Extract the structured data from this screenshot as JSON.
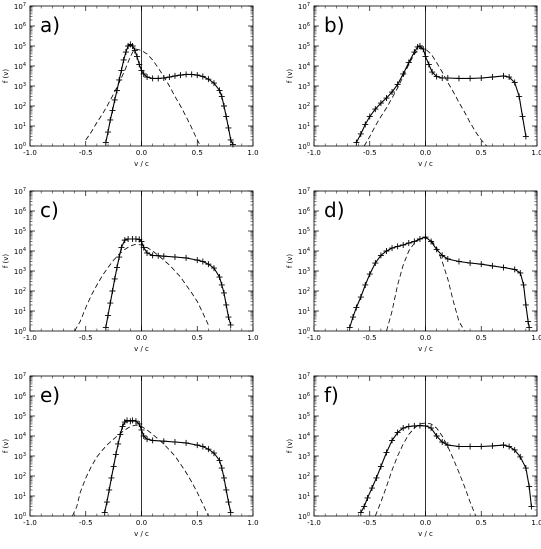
{
  "figure": {
    "panel_labels": [
      "a)",
      "b)",
      "c)",
      "d)",
      "e)",
      "f)"
    ],
    "xlabel": "v / c",
    "ylabel": "f (v)",
    "x_tick_labels": [
      "-1.0",
      "-0.5",
      "0.0",
      "0.5",
      "1.0"
    ],
    "y_tick_labels": [
      {
        "base": "10",
        "exp": "0"
      },
      {
        "base": "10",
        "exp": "1"
      },
      {
        "base": "10",
        "exp": "2"
      },
      {
        "base": "10",
        "exp": "3"
      },
      {
        "base": "10",
        "exp": "4"
      },
      {
        "base": "10",
        "exp": "5"
      },
      {
        "base": "10",
        "exp": "6"
      },
      {
        "base": "10",
        "exp": "7"
      }
    ]
  },
  "chart_data": [
    {
      "type": "line",
      "panel": "a)",
      "xlabel": "v / c",
      "ylabel": "f (v)",
      "xlim": [
        -1.0,
        1.0
      ],
      "ylim": [
        1,
        10000000
      ],
      "yscale": "log",
      "vertical_line_x": 0.0,
      "series": [
        {
          "style": "plus-markers",
          "x": [
            -0.32,
            -0.3,
            -0.28,
            -0.26,
            -0.24,
            -0.22,
            -0.2,
            -0.18,
            -0.16,
            -0.14,
            -0.12,
            -0.1,
            -0.08,
            -0.06,
            -0.04,
            -0.02,
            0.0,
            0.02,
            0.05,
            0.1,
            0.15,
            0.2,
            0.25,
            0.3,
            0.35,
            0.4,
            0.45,
            0.5,
            0.55,
            0.6,
            0.65,
            0.7,
            0.72,
            0.74,
            0.76,
            0.78,
            0.8,
            0.82
          ],
          "y": [
            1.5,
            5,
            20,
            60,
            200,
            600,
            2000,
            6000,
            20000,
            50000,
            100000,
            120000,
            100000,
            60000,
            30000,
            12000,
            6000,
            4000,
            2800,
            2400,
            2400,
            2500,
            2800,
            3200,
            3500,
            3800,
            3800,
            3500,
            3000,
            2200,
            1400,
            600,
            300,
            100,
            30,
            8,
            2,
            1.2
          ]
        },
        {
          "style": "dashed",
          "x": [
            -0.5,
            -0.45,
            -0.4,
            -0.35,
            -0.3,
            -0.25,
            -0.2,
            -0.15,
            -0.1,
            -0.07,
            -0.05,
            0.0,
            0.05,
            0.1,
            0.15,
            0.2,
            0.25,
            0.3,
            0.35,
            0.4,
            0.45,
            0.5,
            0.53
          ],
          "y": [
            2,
            5,
            15,
            40,
            120,
            400,
            1500,
            6000,
            30000,
            60000,
            70000,
            60000,
            40000,
            20000,
            8000,
            3000,
            1000,
            300,
            100,
            30,
            8,
            2,
            1
          ]
        }
      ]
    },
    {
      "type": "line",
      "panel": "b)",
      "xlabel": "v / c",
      "ylabel": "f (v)",
      "xlim": [
        -1.0,
        1.0
      ],
      "ylim": [
        1,
        10000000
      ],
      "yscale": "log",
      "vertical_line_x": 0.0,
      "series": [
        {
          "style": "plus-markers",
          "x": [
            -0.62,
            -0.58,
            -0.54,
            -0.5,
            -0.45,
            -0.4,
            -0.35,
            -0.3,
            -0.25,
            -0.2,
            -0.15,
            -0.1,
            -0.07,
            -0.05,
            -0.02,
            0.0,
            0.03,
            0.06,
            0.1,
            0.15,
            0.2,
            0.3,
            0.4,
            0.5,
            0.6,
            0.7,
            0.75,
            0.8,
            0.84,
            0.87,
            0.9
          ],
          "y": [
            1.5,
            4,
            12,
            30,
            70,
            140,
            250,
            500,
            1200,
            4000,
            15000,
            50000,
            90000,
            100000,
            70000,
            30000,
            12000,
            5000,
            3000,
            2500,
            2500,
            2400,
            2400,
            2500,
            2800,
            3200,
            2800,
            1500,
            300,
            30,
            3
          ]
        },
        {
          "style": "dashed",
          "x": [
            -0.55,
            -0.5,
            -0.45,
            -0.4,
            -0.35,
            -0.3,
            -0.25,
            -0.2,
            -0.15,
            -0.1,
            -0.05,
            0.0,
            0.05,
            0.1,
            0.15,
            0.2,
            0.25,
            0.3,
            0.35,
            0.4,
            0.45,
            0.5,
            0.55
          ],
          "y": [
            1,
            3,
            10,
            30,
            80,
            250,
            800,
            3000,
            12000,
            40000,
            80000,
            70000,
            40000,
            15000,
            5000,
            1500,
            500,
            150,
            50,
            15,
            5,
            2,
            1
          ]
        }
      ]
    },
    {
      "type": "line",
      "panel": "c)",
      "xlabel": "v / c",
      "ylabel": "f (v)",
      "xlim": [
        -1.0,
        1.0
      ],
      "ylim": [
        1,
        10000000
      ],
      "yscale": "log",
      "vertical_line_x": 0.0,
      "series": [
        {
          "style": "plus-markers",
          "x": [
            -0.32,
            -0.3,
            -0.28,
            -0.26,
            -0.24,
            -0.22,
            -0.2,
            -0.18,
            -0.15,
            -0.12,
            -0.08,
            -0.05,
            -0.02,
            0.0,
            0.02,
            0.05,
            0.1,
            0.15,
            0.2,
            0.3,
            0.4,
            0.5,
            0.55,
            0.6,
            0.65,
            0.7,
            0.72,
            0.74,
            0.76,
            0.78,
            0.8
          ],
          "y": [
            1.5,
            6,
            25,
            100,
            400,
            1500,
            5000,
            15000,
            35000,
            40000,
            40000,
            40000,
            38000,
            30000,
            15000,
            8000,
            6000,
            5800,
            5500,
            5000,
            4500,
            3500,
            3000,
            2200,
            1400,
            500,
            200,
            80,
            20,
            5,
            2
          ]
        },
        {
          "style": "dashed",
          "x": [
            -0.6,
            -0.55,
            -0.5,
            -0.45,
            -0.4,
            -0.35,
            -0.3,
            -0.25,
            -0.2,
            -0.15,
            -0.1,
            -0.05,
            0.0,
            0.05,
            0.1,
            0.15,
            0.2,
            0.25,
            0.3,
            0.35,
            0.4,
            0.45,
            0.5,
            0.55,
            0.6
          ],
          "y": [
            1,
            3,
            15,
            60,
            200,
            600,
            1500,
            3500,
            7000,
            12000,
            18000,
            22000,
            20000,
            15000,
            10000,
            6000,
            3500,
            2000,
            1000,
            500,
            200,
            80,
            30,
            8,
            2
          ]
        }
      ]
    },
    {
      "type": "line",
      "panel": "d)",
      "xlabel": "v / c",
      "ylabel": "f (v)",
      "xlim": [
        -1.0,
        1.0
      ],
      "ylim": [
        1,
        10000000
      ],
      "yscale": "log",
      "vertical_line_x": 0.0,
      "series": [
        {
          "style": "plus-markers",
          "x": [
            -0.68,
            -0.65,
            -0.62,
            -0.58,
            -0.54,
            -0.5,
            -0.45,
            -0.4,
            -0.35,
            -0.3,
            -0.25,
            -0.2,
            -0.15,
            -0.1,
            -0.05,
            0.0,
            0.05,
            0.1,
            0.15,
            0.2,
            0.3,
            0.4,
            0.5,
            0.6,
            0.7,
            0.8,
            0.85,
            0.88,
            0.9,
            0.92,
            0.93
          ],
          "y": [
            1.5,
            5,
            15,
            50,
            200,
            700,
            2500,
            6000,
            10000,
            14000,
            17000,
            20000,
            25000,
            30000,
            40000,
            50000,
            30000,
            12000,
            6000,
            4000,
            3000,
            2500,
            2200,
            1800,
            1500,
            1200,
            800,
            200,
            20,
            3,
            1.5
          ]
        },
        {
          "style": "dashed",
          "x": [
            -0.35,
            -0.3,
            -0.25,
            -0.2,
            -0.15,
            -0.1,
            -0.05,
            0.0,
            0.05,
            0.1,
            0.15,
            0.2,
            0.25,
            0.3,
            0.35
          ],
          "y": [
            1,
            10,
            200,
            2000,
            10000,
            25000,
            40000,
            45000,
            35000,
            15000,
            3000,
            400,
            30,
            3,
            1
          ]
        }
      ]
    },
    {
      "type": "line",
      "panel": "e)",
      "xlabel": "v / c",
      "ylabel": "f (v)",
      "xlim": [
        -1.0,
        1.0
      ],
      "ylim": [
        1,
        10000000
      ],
      "yscale": "log",
      "vertical_line_x": 0.0,
      "series": [
        {
          "style": "plus-markers",
          "x": [
            -0.33,
            -0.31,
            -0.29,
            -0.27,
            -0.25,
            -0.23,
            -0.21,
            -0.19,
            -0.17,
            -0.15,
            -0.13,
            -0.1,
            -0.08,
            -0.05,
            -0.02,
            0.0,
            0.02,
            0.05,
            0.1,
            0.2,
            0.3,
            0.4,
            0.5,
            0.55,
            0.6,
            0.65,
            0.7,
            0.72,
            0.74,
            0.76,
            0.78,
            0.8
          ],
          "y": [
            1.5,
            5,
            20,
            80,
            300,
            1200,
            4000,
            12000,
            30000,
            50000,
            60000,
            55000,
            60000,
            55000,
            40000,
            20000,
            10000,
            7000,
            6000,
            5500,
            5000,
            4500,
            3500,
            3000,
            2200,
            1400,
            600,
            250,
            80,
            20,
            5,
            1.5
          ]
        },
        {
          "style": "dashed",
          "x": [
            -0.62,
            -0.58,
            -0.55,
            -0.5,
            -0.45,
            -0.4,
            -0.35,
            -0.3,
            -0.25,
            -0.2,
            -0.15,
            -0.1,
            -0.05,
            0.0,
            0.05,
            0.1,
            0.15,
            0.2,
            0.25,
            0.3,
            0.35,
            0.4,
            0.45,
            0.5,
            0.55,
            0.6
          ],
          "y": [
            1,
            3,
            15,
            80,
            300,
            900,
            2000,
            4000,
            7000,
            12000,
            20000,
            30000,
            35000,
            30000,
            20000,
            12000,
            7000,
            4000,
            2000,
            1000,
            400,
            150,
            50,
            15,
            4,
            1
          ]
        }
      ]
    },
    {
      "type": "line",
      "panel": "f)",
      "xlabel": "v / c",
      "ylabel": "f (v)",
      "xlim": [
        -1.0,
        1.0
      ],
      "ylim": [
        1,
        10000000
      ],
      "yscale": "log",
      "vertical_line_x": 0.0,
      "series": [
        {
          "style": "plus-markers",
          "x": [
            -0.58,
            -0.55,
            -0.52,
            -0.48,
            -0.44,
            -0.4,
            -0.35,
            -0.3,
            -0.25,
            -0.2,
            -0.15,
            -0.1,
            -0.05,
            0.0,
            0.05,
            0.1,
            0.15,
            0.2,
            0.3,
            0.4,
            0.5,
            0.6,
            0.7,
            0.75,
            0.8,
            0.85,
            0.9,
            0.93,
            0.95
          ],
          "y": [
            1.5,
            3,
            8,
            25,
            80,
            300,
            1500,
            6000,
            15000,
            25000,
            30000,
            32000,
            33000,
            32000,
            25000,
            10000,
            5000,
            3500,
            3000,
            3000,
            3000,
            3200,
            3500,
            3000,
            2000,
            900,
            250,
            30,
            3
          ]
        },
        {
          "style": "dashed",
          "x": [
            -0.45,
            -0.4,
            -0.35,
            -0.3,
            -0.25,
            -0.2,
            -0.15,
            -0.1,
            -0.05,
            0.0,
            0.05,
            0.1,
            0.15,
            0.2,
            0.25,
            0.3,
            0.35,
            0.4,
            0.45
          ],
          "y": [
            1,
            5,
            30,
            200,
            1000,
            4000,
            12000,
            25000,
            40000,
            45000,
            40000,
            25000,
            10000,
            3000,
            700,
            150,
            30,
            5,
            1
          ]
        }
      ]
    }
  ]
}
